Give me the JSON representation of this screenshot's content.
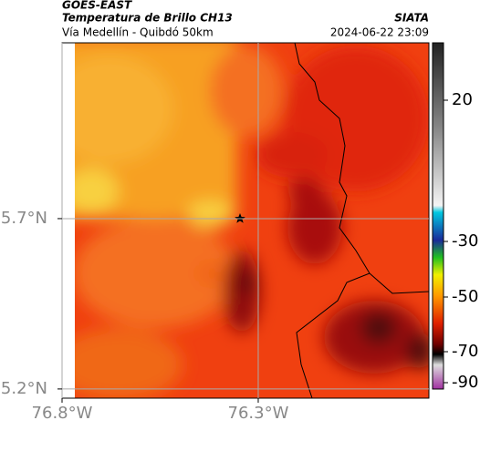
{
  "header": {
    "title": "GOES-EAST",
    "subtitle": "Temperatura de Brillo CH13",
    "location": "Vía Medellín - Quibdó 50km",
    "source": "SIATA",
    "timestamp": "2024-06-22 23:09"
  },
  "map": {
    "xlim": [
      -76.8,
      -75.865
    ],
    "ylim": [
      5.173,
      6.216
    ],
    "xticks": [
      {
        "value": -76.8,
        "label": "76.8°W"
      },
      {
        "value": -76.3,
        "label": "76.3°W"
      }
    ],
    "yticks": [
      {
        "value": 5.7,
        "label": "5.7°N"
      },
      {
        "value": 5.2,
        "label": "5.2°N"
      }
    ],
    "grid": true
  },
  "colorbar": {
    "ticks": [
      20,
      -30,
      -50,
      -70,
      -90
    ]
  }
}
